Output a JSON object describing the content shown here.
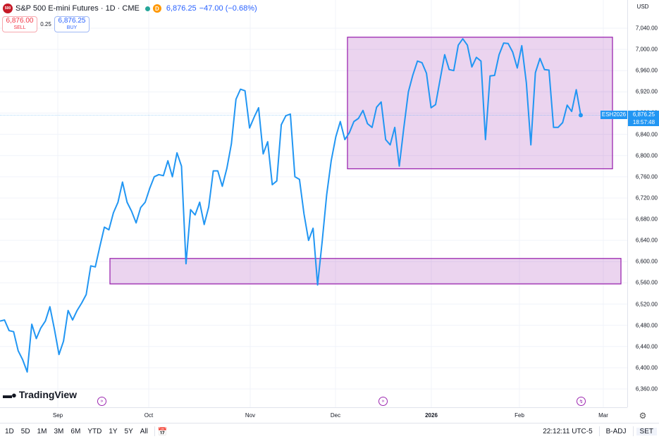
{
  "legend": {
    "logo": "500",
    "title": "S&P 500 E-mini Futures · 1D · CME",
    "d_badge": "D",
    "price": "6,876.25",
    "change": "−47.00 (−0.68%)"
  },
  "trade": {
    "sell_price": "6,876.00",
    "sell_label": "SELL",
    "spread": "0.25",
    "buy_price": "6,876.25",
    "buy_label": "BUY"
  },
  "price_scale": {
    "currency": "USD",
    "ticks": [
      "7,040.00",
      "7,000.00",
      "6,960.00",
      "6,920.00",
      "6,880.00",
      "6,840.00",
      "6,800.00",
      "6,760.00",
      "6,720.00",
      "6,680.00",
      "6,640.00",
      "6,600.00",
      "6,560.00",
      "6,520.00",
      "6,480.00",
      "6,440.00",
      "6,400.00",
      "6,360.00"
    ],
    "current_symbol": "ESH2026",
    "current_price": "6,876.25",
    "countdown": "18:57:48"
  },
  "time_scale": {
    "labels": [
      {
        "text": "Sep",
        "bold": false
      },
      {
        "text": "Oct",
        "bold": false
      },
      {
        "text": "Nov",
        "bold": false
      },
      {
        "text": "Dec",
        "bold": false
      },
      {
        "text": "2026",
        "bold": true
      },
      {
        "text": "Feb",
        "bold": false
      },
      {
        "text": "Mar",
        "bold": false
      }
    ]
  },
  "branding": {
    "logo_text": "TradingView",
    "logo_mark": "17"
  },
  "bottom_bar": {
    "ranges": [
      "1D",
      "5D",
      "1M",
      "3M",
      "6M",
      "YTD",
      "1Y",
      "5Y",
      "All"
    ],
    "clock": "22:12:11 UTC-5",
    "adj": "B-ADJ",
    "session": "SET"
  },
  "chart_data": {
    "type": "line",
    "title": "S&P 500 E-mini Futures · 1D · CME",
    "xlabel": "",
    "ylabel": "",
    "ylim": [
      6340,
      7070
    ],
    "x_ticks": [
      "Sep",
      "Oct",
      "Nov",
      "Dec",
      "2026",
      "Feb",
      "Mar"
    ],
    "series": [
      {
        "color": "#2196f3",
        "values": [
          6488,
          6490,
          6470,
          6468,
          6432,
          6415,
          6392,
          6482,
          6455,
          6475,
          6488,
          6515,
          6472,
          6425,
          6450,
          6508,
          6490,
          6508,
          6522,
          6538,
          6592,
          6590,
          6628,
          6665,
          6660,
          6692,
          6712,
          6750,
          6712,
          6695,
          6673,
          6702,
          6712,
          6738,
          6760,
          6764,
          6762,
          6790,
          6760,
          6805,
          6780,
          6596,
          6698,
          6688,
          6712,
          6670,
          6703,
          6771,
          6771,
          6742,
          6776,
          6822,
          6906,
          6925,
          6922,
          6852,
          6872,
          6890,
          6803,
          6826,
          6745,
          6752,
          6858,
          6875,
          6878,
          6760,
          6755,
          6690,
          6640,
          6663,
          6556,
          6638,
          6726,
          6790,
          6835,
          6864,
          6830,
          6843,
          6864,
          6870,
          6885,
          6860,
          6853,
          6891,
          6901,
          6830,
          6820,
          6853,
          6780,
          6852,
          6920,
          6952,
          6978,
          6975,
          6955,
          6890,
          6896,
          6943,
          6990,
          6962,
          6960,
          7008,
          7020,
          7008,
          6967,
          6985,
          6978,
          6830,
          6950,
          6951,
          6990,
          7012,
          7011,
          6995,
          6965,
          7007,
          6937,
          6820,
          6956,
          6983,
          6962,
          6961,
          6853,
          6853,
          6862,
          6895,
          6883,
          6924,
          6876
        ]
      }
    ],
    "annotations": [
      {
        "type": "rectangle",
        "label": "",
        "y_range": [
          6775,
          7023
        ],
        "color": "#9c27b0"
      },
      {
        "type": "rectangle",
        "label": "",
        "y_range": [
          6558,
          6606
        ],
        "color": "#9c27b0"
      }
    ],
    "current_price": 6876.25,
    "grid": true,
    "legend": "top-left"
  }
}
